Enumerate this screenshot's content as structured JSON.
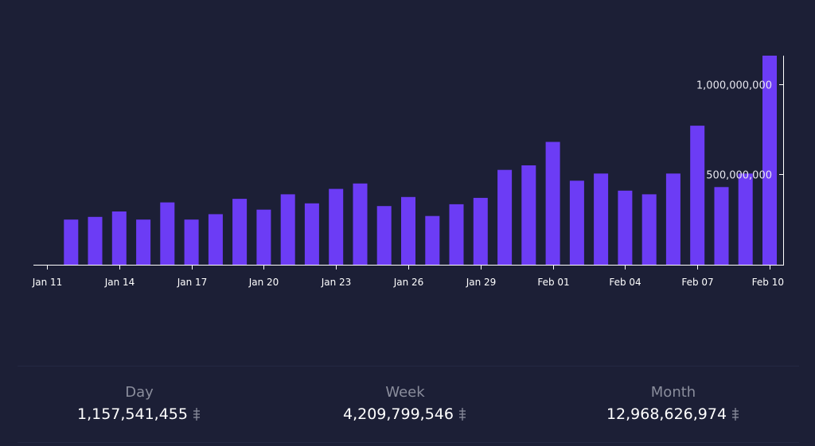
{
  "chart_data": {
    "type": "bar",
    "categories": [
      "Jan 11",
      "Jan 12",
      "Jan 13",
      "Jan 14",
      "Jan 15",
      "Jan 16",
      "Jan 17",
      "Jan 18",
      "Jan 19",
      "Jan 20",
      "Jan 21",
      "Jan 22",
      "Jan 23",
      "Jan 24",
      "Jan 25",
      "Jan 26",
      "Jan 27",
      "Jan 28",
      "Jan 29",
      "Jan 30",
      "Jan 31",
      "Feb 01",
      "Feb 02",
      "Feb 03",
      "Feb 04",
      "Feb 05",
      "Feb 06",
      "Feb 07",
      "Feb 08",
      "Feb 09",
      "Feb 10"
    ],
    "values": [
      0,
      250000000,
      265000000,
      295000000,
      250000000,
      345000000,
      250000000,
      280000000,
      365000000,
      305000000,
      390000000,
      340000000,
      420000000,
      450000000,
      325000000,
      375000000,
      270000000,
      335000000,
      370000000,
      525000000,
      550000000,
      680000000,
      465000000,
      505000000,
      410000000,
      390000000,
      505000000,
      770000000,
      430000000,
      505000000,
      1157541455
    ],
    "x_tick_labels": [
      "Jan 11",
      "Jan 14",
      "Jan 17",
      "Jan 20",
      "Jan 23",
      "Jan 26",
      "Jan 29",
      "Feb 01",
      "Feb 04",
      "Feb 07",
      "Feb 10"
    ],
    "y_tick_labels": [
      "500,000,000",
      "1,000,000,000"
    ],
    "y_ticks": [
      500000000,
      1000000000
    ],
    "ylim": [
      0,
      1157541455
    ],
    "bar_color": "#6c3cf5",
    "axis_color": "#ffffff",
    "grid": false,
    "title": "",
    "xlabel": "",
    "ylabel": ""
  },
  "stats": {
    "day": {
      "label": "Day",
      "value": "1,157,541,455"
    },
    "week": {
      "label": "Week",
      "value": "4,209,799,546"
    },
    "month": {
      "label": "Month",
      "value": "12,968,626,974"
    }
  },
  "icons": {
    "currency": "coin-icon"
  },
  "colors": {
    "background": "#1c1f36",
    "bar": "#6c3cf5",
    "stat_label": "#8a8d9c",
    "stat_value": "#ffffff"
  }
}
